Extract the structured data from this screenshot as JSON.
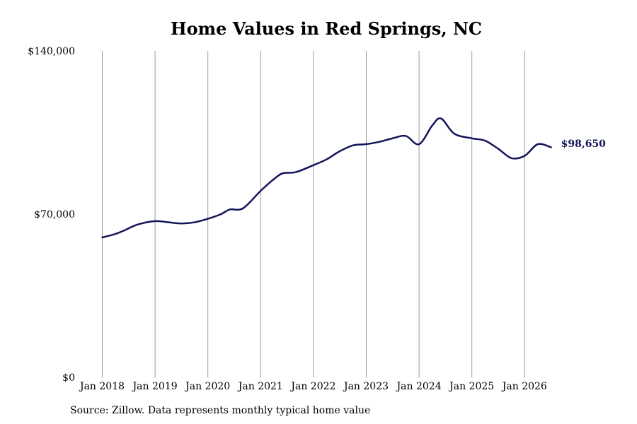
{
  "chart_data": {
    "type": "line",
    "title": "Home Values in Red Springs, NC",
    "xlabel": "",
    "ylabel": "",
    "ylim": [
      0,
      140000
    ],
    "y_ticks": [
      {
        "value": 0,
        "label": "$0"
      },
      {
        "value": 70000,
        "label": "$70,000"
      },
      {
        "value": 140000,
        "label": "$140,000"
      }
    ],
    "x_ticks": [
      {
        "value": "2018-01",
        "label": "Jan 2018"
      },
      {
        "value": "2019-01",
        "label": "Jan 2019"
      },
      {
        "value": "2020-01",
        "label": "Jan 2020"
      },
      {
        "value": "2021-01",
        "label": "Jan 2021"
      },
      {
        "value": "2022-01",
        "label": "Jan 2022"
      },
      {
        "value": "2023-01",
        "label": "Jan 2023"
      },
      {
        "value": "2024-01",
        "label": "Jan 2024"
      },
      {
        "value": "2025-01",
        "label": "Jan 2025"
      },
      {
        "value": "2026-01",
        "label": "Jan 2026"
      }
    ],
    "grid": "vertical",
    "line_color": "#14145a",
    "end_label": "$98,650",
    "series": [
      {
        "x": [
          "2018-01",
          "2018-04",
          "2018-06",
          "2018-09",
          "2019-01",
          "2019-04",
          "2019-07",
          "2019-10",
          "2020-01",
          "2020-04",
          "2020-06",
          "2020-09",
          "2021-01",
          "2021-04",
          "2021-06",
          "2021-09",
          "2022-01",
          "2022-04",
          "2022-07",
          "2022-10",
          "2023-01",
          "2023-04",
          "2023-07",
          "2023-10",
          "2024-01",
          "2024-04",
          "2024-06",
          "2024-09",
          "2025-01",
          "2025-04",
          "2025-07",
          "2025-10",
          "2026-01",
          "2026-04",
          "2026-07"
        ],
        "y": [
          60000,
          61500,
          63000,
          65500,
          67000,
          66500,
          66000,
          66500,
          68000,
          70000,
          72000,
          72500,
          80000,
          85000,
          87500,
          88000,
          91000,
          93500,
          97000,
          99500,
          100000,
          101000,
          102500,
          103500,
          100000,
          108000,
          111000,
          104500,
          102500,
          101500,
          98000,
          94000,
          95000,
          100000,
          98650
        ]
      }
    ]
  },
  "source_note": "Source: Zillow. Data represents monthly typical home value"
}
